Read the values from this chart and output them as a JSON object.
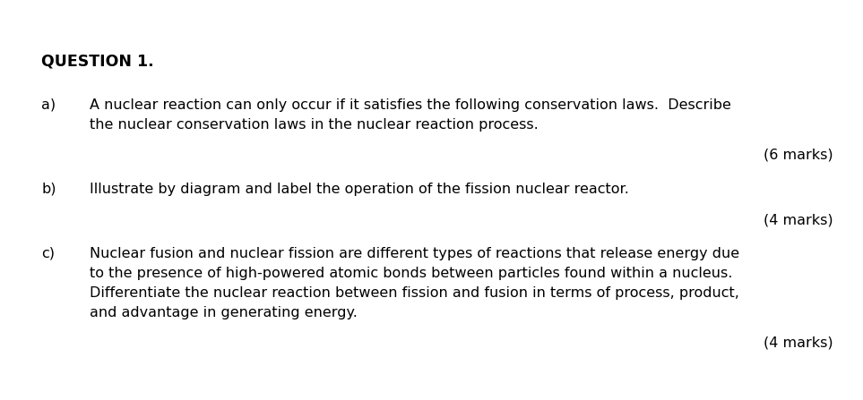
{
  "background_color": "#ffffff",
  "title": "QUESTION 1.",
  "title_fontsize": 12.5,
  "title_fontweight": "bold",
  "items": [
    {
      "label": "a)",
      "lines": [
        "A nuclear reaction can only occur if it satisfies the following conservation laws.  Describe",
        "the nuclear conservation laws in the nuclear reaction process."
      ],
      "marks": "(6 marks)",
      "fontsize": 11.5
    },
    {
      "label": "b)",
      "lines": [
        "Illustrate by diagram and label the operation of the fission nuclear reactor."
      ],
      "marks": "(4 marks)",
      "fontsize": 11.5
    },
    {
      "label": "c)",
      "lines": [
        "Nuclear fusion and nuclear fission are different types of reactions that release energy due",
        "to the presence of high-powered atomic bonds between particles found within a nucleus.",
        "Differentiate the nuclear reaction between fission and fusion in terms of process, product,",
        "and advantage in generating energy."
      ],
      "marks": "(4 marks)",
      "fontsize": 11.5
    }
  ],
  "text_color": "#000000",
  "font_family": "DejaVu Sans"
}
